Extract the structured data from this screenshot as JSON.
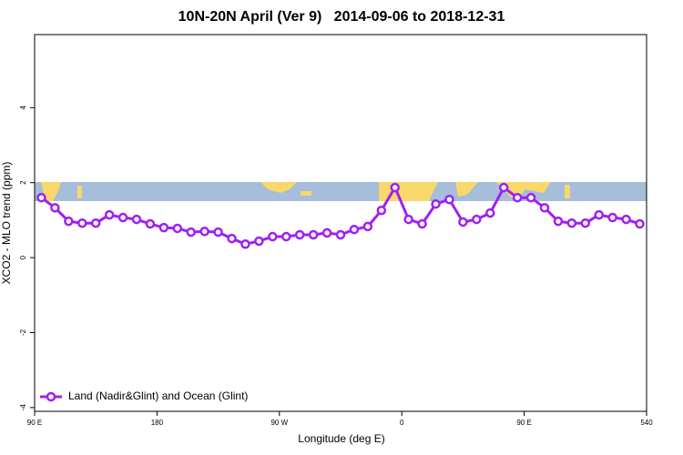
{
  "chart_data": {
    "type": "line",
    "title": "10N-20N April (Ver 9)   2014-09-06 to 2018-12-31",
    "x_label": "Longitude (deg E)",
    "y_label": "XCO2 - MLO trend (ppm)",
    "x": [
      95,
      105,
      115,
      125,
      135,
      145,
      155,
      165,
      175,
      185,
      195,
      205,
      215,
      225,
      235,
      245,
      255,
      265,
      275,
      285,
      295,
      305,
      315,
      325,
      335,
      345,
      355,
      365,
      375,
      385,
      395,
      405,
      415,
      425,
      435,
      445,
      455,
      465,
      475,
      485,
      495,
      505,
      515,
      525,
      535
    ],
    "series": [
      {
        "name": "Land (Nadir&Glint) and Ocean (Glint)",
        "color": "#a020f0",
        "values": [
          1.6,
          1.33,
          0.97,
          0.92,
          0.92,
          1.14,
          1.07,
          1.02,
          0.9,
          0.8,
          0.78,
          0.68,
          0.7,
          0.68,
          0.51,
          0.36,
          0.44,
          0.56,
          0.56,
          0.61,
          0.61,
          0.66,
          0.61,
          0.75,
          0.83,
          1.26,
          1.87,
          1.02,
          0.9,
          1.43,
          1.55,
          0.95,
          1.02,
          1.19,
          1.87,
          1.6,
          1.6,
          1.33,
          0.97,
          0.92,
          0.92,
          1.14,
          1.07,
          1.02,
          0.9
        ]
      }
    ],
    "xlim": [
      90,
      540
    ],
    "xticks": [
      {
        "value": 90,
        "label": "90 E"
      },
      180,
      {
        "value": 270,
        "label": "90 W"
      },
      {
        "value": 360,
        "label": "0"
      },
      {
        "value": 450,
        "label": "90 E"
      },
      540
    ],
    "ylim": [
      -4.1,
      5.95
    ],
    "yticks": [
      -4,
      -2,
      0,
      2,
      4
    ],
    "legend": "bottom-left"
  }
}
